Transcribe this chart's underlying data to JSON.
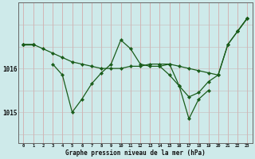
{
  "xlabel": "Graphe pression niveau de la mer (hPa)",
  "x_all": [
    0,
    1,
    2,
    3,
    4,
    5,
    6,
    7,
    8,
    9,
    10,
    11,
    12,
    13,
    14,
    15,
    16,
    17,
    18,
    19,
    20,
    21,
    22,
    23
  ],
  "line_A": [
    1016.55,
    1016.55,
    1016.45,
    1016.35,
    1016.25,
    1016.15,
    1016.1,
    1016.05,
    1016.0,
    1016.0,
    1016.0,
    1016.05,
    1016.05,
    1016.1,
    1016.1,
    1016.1,
    1016.05,
    1016.0,
    1015.95,
    1015.9,
    1015.85,
    1016.55,
    1016.85,
    1017.15
  ],
  "line_B": [
    1016.55,
    1016.55,
    null,
    1016.1,
    1015.85,
    1015.0,
    1015.3,
    1015.65,
    1015.9,
    1016.1,
    1016.65,
    1016.45,
    1016.1,
    1016.05,
    1016.05,
    1015.85,
    1015.6,
    1014.85,
    1015.3,
    1015.5,
    null,
    null,
    null,
    null
  ],
  "line_C": [
    null,
    null,
    null,
    null,
    null,
    null,
    null,
    null,
    null,
    null,
    null,
    null,
    null,
    null,
    1016.05,
    1016.1,
    1015.6,
    1015.35,
    1015.45,
    1015.7,
    1015.85,
    1016.55,
    1016.85,
    1017.15
  ],
  "line_D": [
    1016.55,
    1016.55,
    null,
    null,
    null,
    null,
    null,
    null,
    null,
    null,
    null,
    null,
    null,
    null,
    null,
    null,
    null,
    null,
    null,
    null,
    null,
    null,
    1016.85,
    1017.15
  ],
  "bg_color": "#ceeaea",
  "line_color": "#1a5c1a",
  "grid_v_color": "#d4a0a0",
  "grid_h_color": "#c8b8b8",
  "yticks": [
    1015.0,
    1016.0
  ],
  "ylim": [
    1014.3,
    1017.5
  ],
  "xlim": [
    -0.5,
    23.5
  ],
  "marker_size": 2.2,
  "linewidth": 0.9
}
